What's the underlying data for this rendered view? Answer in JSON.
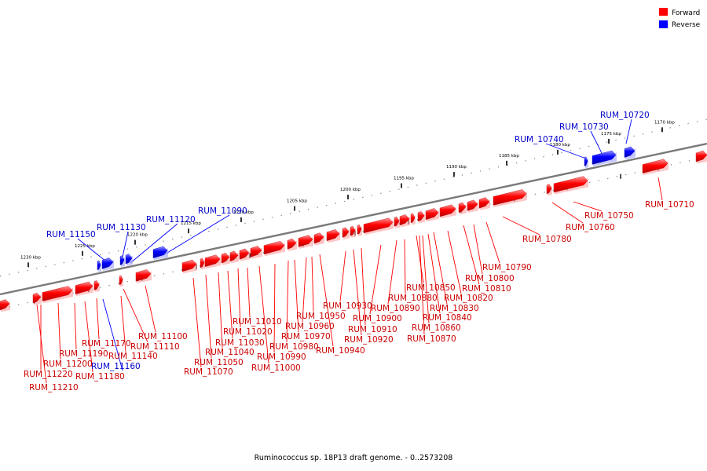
{
  "caption": "Ruminococcus sp. 18P13 draft genome. - 0..2573208",
  "legend": [
    {
      "label": "Forward",
      "color": "#ff0000"
    },
    {
      "label": "Reverse",
      "color": "#0000ff"
    }
  ],
  "colors": {
    "forward": "#ff0000",
    "reverse": "#0000ff",
    "backbone": "#808080"
  },
  "ticks": [
    "1170 kbp",
    "1175 kbp",
    "1180 kbp",
    "1185 kbp",
    "1190 kbp",
    "1195 kbp",
    "1200 kbp",
    "1205 kbp",
    "1210 kbp",
    "1215 kbp",
    "1220 kbp",
    "1225 kbp",
    "1230 kbp"
  ],
  "genes": [
    {
      "name": "RUM_10720",
      "strand": "reverse"
    },
    {
      "name": "RUM_10730",
      "strand": "reverse"
    },
    {
      "name": "RUM_10740",
      "strand": "reverse"
    },
    {
      "name": "RUM_10710",
      "strand": "forward"
    },
    {
      "name": "RUM_10750",
      "strand": "forward"
    },
    {
      "name": "RUM_10760",
      "strand": "forward"
    },
    {
      "name": "RUM_10780",
      "strand": "forward"
    },
    {
      "name": "RUM_10790",
      "strand": "forward"
    },
    {
      "name": "RUM_10800",
      "strand": "forward"
    },
    {
      "name": "RUM_10810",
      "strand": "forward"
    },
    {
      "name": "RUM_10820",
      "strand": "forward"
    },
    {
      "name": "RUM_10830",
      "strand": "forward"
    },
    {
      "name": "RUM_10840",
      "strand": "forward"
    },
    {
      "name": "RUM_10850",
      "strand": "forward"
    },
    {
      "name": "RUM_10860",
      "strand": "forward"
    },
    {
      "name": "RUM_10870",
      "strand": "forward"
    },
    {
      "name": "RUM_10880",
      "strand": "forward"
    },
    {
      "name": "RUM_10890",
      "strand": "forward"
    },
    {
      "name": "RUM_10900",
      "strand": "forward"
    },
    {
      "name": "RUM_10910",
      "strand": "forward"
    },
    {
      "name": "RUM_10920",
      "strand": "forward"
    },
    {
      "name": "RUM_10930",
      "strand": "forward"
    },
    {
      "name": "RUM_10940",
      "strand": "forward"
    },
    {
      "name": "RUM_10950",
      "strand": "forward"
    },
    {
      "name": "RUM_10960",
      "strand": "forward"
    },
    {
      "name": "RUM_10970",
      "strand": "forward"
    },
    {
      "name": "RUM_10980",
      "strand": "forward"
    },
    {
      "name": "RUM_10990",
      "strand": "forward"
    },
    {
      "name": "RUM_11000",
      "strand": "forward"
    },
    {
      "name": "RUM_11010",
      "strand": "forward"
    },
    {
      "name": "RUM_11020",
      "strand": "forward"
    },
    {
      "name": "RUM_11030",
      "strand": "forward"
    },
    {
      "name": "RUM_11040",
      "strand": "forward"
    },
    {
      "name": "RUM_11050",
      "strand": "forward"
    },
    {
      "name": "RUM_11070",
      "strand": "forward"
    },
    {
      "name": "RUM_11090",
      "strand": "reverse"
    },
    {
      "name": "RUM_11120",
      "strand": "reverse"
    },
    {
      "name": "RUM_11130",
      "strand": "reverse"
    },
    {
      "name": "RUM_11150",
      "strand": "reverse"
    },
    {
      "name": "RUM_11100",
      "strand": "forward"
    },
    {
      "name": "RUM_11110",
      "strand": "forward"
    },
    {
      "name": "RUM_11140",
      "strand": "forward"
    },
    {
      "name": "RUM_11160",
      "strand": "reverse"
    },
    {
      "name": "RUM_11170",
      "strand": "forward"
    },
    {
      "name": "RUM_11180",
      "strand": "forward"
    },
    {
      "name": "RUM_11190",
      "strand": "forward"
    },
    {
      "name": "RUM_11200",
      "strand": "forward"
    },
    {
      "name": "RUM_11210",
      "strand": "forward"
    },
    {
      "name": "RUM_11220",
      "strand": "forward"
    }
  ]
}
